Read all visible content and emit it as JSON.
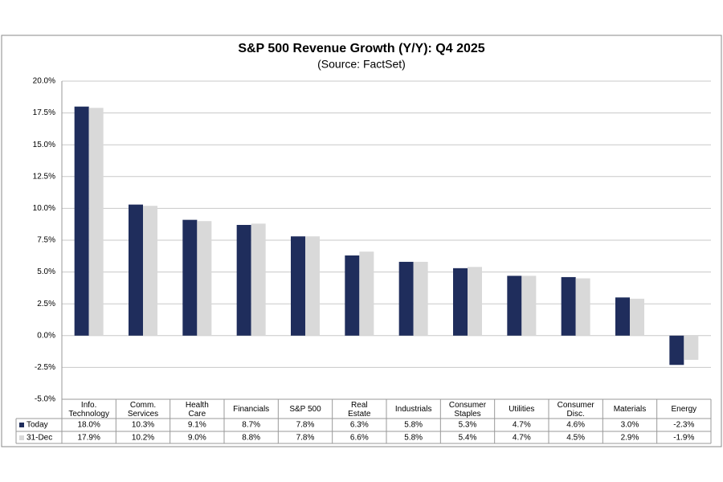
{
  "chart_data": {
    "type": "bar",
    "title": "S&P 500 Revenue Growth (Y/Y): Q4 2025",
    "subtitle": "(Source: FactSet)",
    "categories": [
      "Info. Technology",
      "Comm. Services",
      "Health Care",
      "Financials",
      "S&P 500",
      "Real Estate",
      "Industrials",
      "Consumer Staples",
      "Utilities",
      "Consumer Disc.",
      "Materials",
      "Energy"
    ],
    "series": [
      {
        "name": "Today",
        "color": "#1f2d5c",
        "values": [
          18.0,
          10.3,
          9.1,
          8.7,
          7.8,
          6.3,
          5.8,
          5.3,
          4.7,
          4.6,
          3.0,
          -2.3
        ],
        "value_labels": [
          "18.0%",
          "10.3%",
          "9.1%",
          "8.7%",
          "7.8%",
          "6.3%",
          "5.8%",
          "5.3%",
          "4.7%",
          "4.6%",
          "3.0%",
          "-2.3%"
        ]
      },
      {
        "name": "31-Dec",
        "color": "#d9d9d9",
        "values": [
          17.9,
          10.2,
          9.0,
          8.8,
          7.8,
          6.6,
          5.8,
          5.4,
          4.7,
          4.5,
          2.9,
          -1.9
        ],
        "value_labels": [
          "17.9%",
          "10.2%",
          "9.0%",
          "8.8%",
          "7.8%",
          "6.6%",
          "5.8%",
          "5.4%",
          "4.7%",
          "4.5%",
          "2.9%",
          "-1.9%"
        ]
      }
    ],
    "ylim": [
      -5,
      20
    ],
    "yticks": [
      {
        "value": -5,
        "label": "-5.0%"
      },
      {
        "value": -2.5,
        "label": "-2.5%"
      },
      {
        "value": 0,
        "label": "0.0%"
      },
      {
        "value": 2.5,
        "label": "2.5%"
      },
      {
        "value": 5,
        "label": "5.0%"
      },
      {
        "value": 7.5,
        "label": "7.5%"
      },
      {
        "value": 10,
        "label": "10.0%"
      },
      {
        "value": 12.5,
        "label": "12.5%"
      },
      {
        "value": 15,
        "label": "15.0%"
      },
      {
        "value": 17.5,
        "label": "17.5%"
      },
      {
        "value": 20,
        "label": "20.0%"
      }
    ],
    "grid": true
  }
}
